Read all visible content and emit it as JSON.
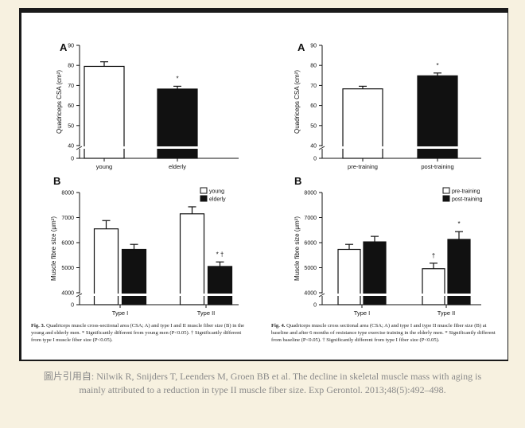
{
  "colors": {
    "page_bg": "#f7f1e0",
    "frame": "#1a1a1a",
    "white_bar": "#ffffff",
    "black_bar": "#111111",
    "credit_text": "#8a8a8a"
  },
  "chart_data": [
    {
      "id": "fig3a",
      "type": "bar",
      "panel_label": "A",
      "ylabel": "Quadriceps CSA (cm²)",
      "ylim": [
        0,
        90
      ],
      "axis_break": true,
      "yticks": [
        "0",
        "40",
        "50",
        "60",
        "70",
        "80",
        "90"
      ],
      "categories": [
        "young",
        "elderly"
      ],
      "bars": [
        {
          "category": "young",
          "value": 79.5,
          "error": 2.3,
          "fill": "white",
          "marker": ""
        },
        {
          "category": "elderly",
          "value": 68.2,
          "error": 1.4,
          "fill": "black",
          "marker": "*"
        }
      ]
    },
    {
      "id": "fig3b",
      "type": "bar",
      "panel_label": "B",
      "ylabel": "Muscle fibre size (μm²)",
      "ylim": [
        0,
        8000
      ],
      "axis_break": true,
      "yticks": [
        "0",
        "4000",
        "5000",
        "6000",
        "7000",
        "8000"
      ],
      "categories": [
        "Type I",
        "Type II"
      ],
      "legend": [
        {
          "label": "young",
          "fill": "white"
        },
        {
          "label": "elderly",
          "fill": "black"
        }
      ],
      "legend_position": "top-right",
      "series": [
        {
          "name": "young",
          "fill": "white",
          "values": [
            6550,
            7150
          ],
          "errors": [
            330,
            280
          ],
          "markers": [
            "",
            ""
          ]
        },
        {
          "name": "elderly",
          "fill": "black",
          "values": [
            5730,
            5050
          ],
          "errors": [
            200,
            180
          ],
          "markers": [
            "",
            "* †"
          ]
        }
      ]
    },
    {
      "id": "fig4a",
      "type": "bar",
      "panel_label": "A",
      "ylabel": "Quadriceps CSA (cm²)",
      "ylim": [
        0,
        90
      ],
      "axis_break": true,
      "yticks": [
        "0",
        "40",
        "50",
        "60",
        "70",
        "80",
        "90"
      ],
      "categories": [
        "pre-training",
        "post-training"
      ],
      "bars": [
        {
          "category": "pre-training",
          "value": 68.3,
          "error": 1.3,
          "fill": "white",
          "marker": ""
        },
        {
          "category": "post-training",
          "value": 74.8,
          "error": 1.4,
          "fill": "black",
          "marker": "*"
        }
      ]
    },
    {
      "id": "fig4b",
      "type": "bar",
      "panel_label": "B",
      "ylabel": "Muscle fibre size (μm²)",
      "ylim": [
        0,
        8000
      ],
      "axis_break": true,
      "yticks": [
        "0",
        "4000",
        "5000",
        "6000",
        "7000",
        "8000"
      ],
      "categories": [
        "Type I",
        "Type II"
      ],
      "legend": [
        {
          "label": "pre-training",
          "fill": "white"
        },
        {
          "label": "post-training",
          "fill": "black"
        }
      ],
      "legend_position": "top-right",
      "series": [
        {
          "name": "pre-training",
          "fill": "white",
          "values": [
            5730,
            4960
          ],
          "errors": [
            200,
            220
          ],
          "markers": [
            "",
            "†"
          ]
        },
        {
          "name": "post-training",
          "fill": "black",
          "values": [
            6030,
            6130
          ],
          "errors": [
            220,
            310
          ],
          "markers": [
            "",
            "*"
          ]
        }
      ]
    }
  ],
  "captions": {
    "fig3": {
      "label": "Fig. 3.",
      "text": "Quadriceps muscle cross-sectional area (CSA; A) and type I and II muscle fiber size (B) in the young and elderly men. * Significantly different from young men (P<0.05). † Significantly different from type I muscle fiber size (P<0.05)."
    },
    "fig4": {
      "label": "Fig. 4.",
      "text": "Quadriceps muscle cross sectional area (CSA; A) and type I and type II muscle fiber size (B) at baseline and after 6 months of resistance type exercise training in the elderly men. * Significantly different from baseline (P<0.05). † Significantly different from type I fiber size (P<0.05)."
    }
  },
  "credit": "圖片引用自: Nilwik R, Snijders T, Leenders M, Groen BB et al. The decline in skeletal muscle mass with aging is mainly attributed to a reduction in type II muscle fiber size. Exp Gerontol. 2013;48(5):492–498."
}
